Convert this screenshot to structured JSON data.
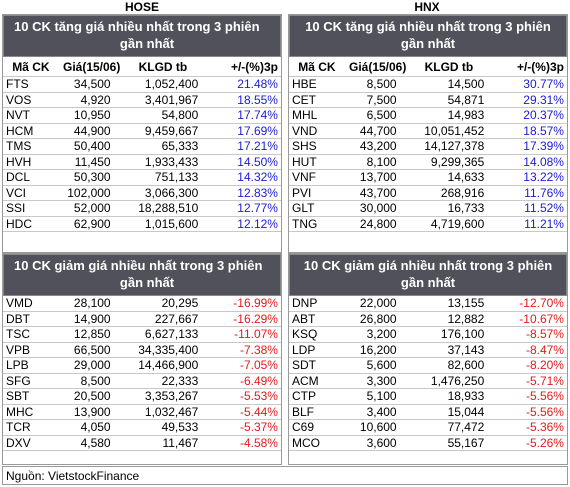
{
  "left_exchange": "HOSE",
  "right_exchange": "HNX",
  "columns": [
    "Mã CK",
    "Giá(15/06)",
    "KLGD tb",
    "+/-(%)3p"
  ],
  "gain_title_l1": "10 CK tăng giá nhiều nhất trong 3 phiên",
  "gain_title_l2": "gần nhất",
  "loss_title_l1": "10 CK giảm giá nhiều nhất trong 3 phiên",
  "loss_title_l2": "gần nhất",
  "hose_gain": [
    [
      "FTS",
      "34,500",
      "1,052,400",
      "21.48%"
    ],
    [
      "VOS",
      "4,920",
      "3,401,967",
      "18.55%"
    ],
    [
      "NVT",
      "10,950",
      "54,800",
      "17.74%"
    ],
    [
      "HCM",
      "44,900",
      "9,459,667",
      "17.69%"
    ],
    [
      "TMS",
      "50,400",
      "65,333",
      "17.21%"
    ],
    [
      "HVH",
      "11,450",
      "1,933,433",
      "14.50%"
    ],
    [
      "DCL",
      "50,300",
      "751,133",
      "14.32%"
    ],
    [
      "VCI",
      "102,000",
      "3,066,300",
      "12.83%"
    ],
    [
      "SSI",
      "52,000",
      "18,288,510",
      "12.77%"
    ],
    [
      "HDC",
      "62,900",
      "1,015,600",
      "12.12%"
    ]
  ],
  "hnx_gain": [
    [
      "HBE",
      "8,500",
      "14,500",
      "30.77%"
    ],
    [
      "CET",
      "7,500",
      "54,871",
      "29.31%"
    ],
    [
      "MHL",
      "6,500",
      "14,983",
      "20.37%"
    ],
    [
      "VND",
      "44,700",
      "10,051,452",
      "18.57%"
    ],
    [
      "SHS",
      "43,200",
      "14,127,378",
      "17.39%"
    ],
    [
      "HUT",
      "8,100",
      "9,299,365",
      "14.08%"
    ],
    [
      "VNF",
      "13,700",
      "14,633",
      "13.22%"
    ],
    [
      "PVI",
      "43,700",
      "268,916",
      "11.76%"
    ],
    [
      "GLT",
      "30,000",
      "16,733",
      "11.52%"
    ],
    [
      "TNG",
      "24,800",
      "4,719,600",
      "11.21%"
    ]
  ],
  "hose_loss": [
    [
      "VMD",
      "28,100",
      "20,295",
      "-16.99%"
    ],
    [
      "DBT",
      "14,900",
      "227,667",
      "-16.29%"
    ],
    [
      "TSC",
      "12,850",
      "6,627,133",
      "-11.07%"
    ],
    [
      "VPB",
      "66,500",
      "34,335,400",
      "-7.38%"
    ],
    [
      "LPB",
      "29,000",
      "14,466,900",
      "-7.05%"
    ],
    [
      "SFG",
      "8,500",
      "22,333",
      "-6.49%"
    ],
    [
      "SBT",
      "20,500",
      "3,353,267",
      "-5.53%"
    ],
    [
      "MHC",
      "13,900",
      "1,032,467",
      "-5.44%"
    ],
    [
      "TCR",
      "4,050",
      "49,533",
      "-5.37%"
    ],
    [
      "DXV",
      "4,580",
      "11,467",
      "-4.58%"
    ]
  ],
  "hnx_loss": [
    [
      "DNP",
      "22,000",
      "13,155",
      "-12.70%"
    ],
    [
      "ABT",
      "26,800",
      "12,882",
      "-10.67%"
    ],
    [
      "KSQ",
      "3,200",
      "176,100",
      "-8.57%"
    ],
    [
      "LDP",
      "16,200",
      "37,143",
      "-8.47%"
    ],
    [
      "SDT",
      "5,600",
      "82,600",
      "-8.20%"
    ],
    [
      "ACM",
      "3,300",
      "1,476,250",
      "-5.71%"
    ],
    [
      "CTP",
      "5,100",
      "18,933",
      "-5.56%"
    ],
    [
      "BLF",
      "3,400",
      "15,044",
      "-5.56%"
    ],
    [
      "C69",
      "10,600",
      "77,472",
      "-5.36%"
    ],
    [
      "MCO",
      "3,600",
      "55,167",
      "-5.26%"
    ]
  ],
  "source": "Nguồn: VietstockFinance",
  "colors": {
    "header_bg": "#50515a",
    "up": "#1b1bd6",
    "down": "#e01b1b"
  }
}
